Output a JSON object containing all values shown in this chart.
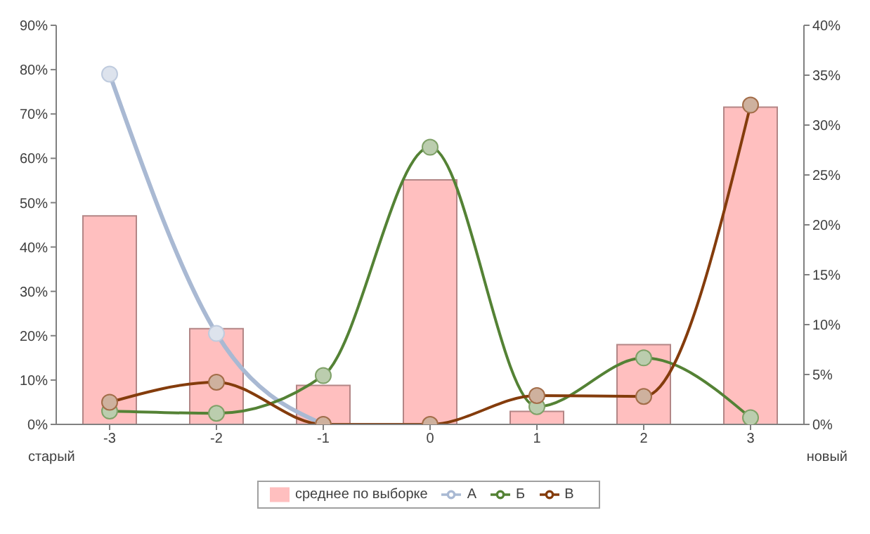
{
  "chart_data": {
    "type": "bar",
    "categories": [
      "-3",
      "-2",
      "-1",
      "0",
      "1",
      "2",
      "3"
    ],
    "series": [
      {
        "name": "среднее по выборке",
        "axis": "y2",
        "color": "#ffbfbf",
        "values": [
          20.9,
          9.6,
          3.9,
          24.5,
          1.3,
          8,
          31.8
        ]
      },
      {
        "name": "А",
        "type": "line",
        "color": "#a9b9d3",
        "values": [
          79,
          20.5,
          0,
          null,
          null,
          null,
          null
        ]
      },
      {
        "name": "Б",
        "type": "line",
        "color": "#548235",
        "values": [
          3,
          2.5,
          11,
          62.5,
          4,
          15,
          1.5
        ]
      },
      {
        "name": "В",
        "type": "line",
        "color": "#843c0c",
        "values": [
          5,
          9.5,
          0,
          0,
          6.5,
          6.3,
          72
        ]
      }
    ],
    "ylim": [
      0,
      90
    ],
    "yticks": [
      {
        "value": 0,
        "label": "0%"
      },
      {
        "value": 10,
        "label": "10%"
      },
      {
        "value": 20,
        "label": "20%"
      },
      {
        "value": 30,
        "label": "30%"
      },
      {
        "value": 40,
        "label": "40%"
      },
      {
        "value": 50,
        "label": "50%"
      },
      {
        "value": 60,
        "label": "60%"
      },
      {
        "value": 70,
        "label": "70%"
      },
      {
        "value": 80,
        "label": "80%"
      },
      {
        "value": 90,
        "label": "90%"
      }
    ],
    "y2lim": [
      0,
      40
    ],
    "y2ticks": [
      {
        "value": 0,
        "label": "0%"
      },
      {
        "value": 5,
        "label": "5%"
      },
      {
        "value": 10,
        "label": "10%"
      },
      {
        "value": 15,
        "label": "15%"
      },
      {
        "value": 20,
        "label": "20%"
      },
      {
        "value": 25,
        "label": "25%"
      },
      {
        "value": 30,
        "label": "30%"
      },
      {
        "value": 35,
        "label": "35%"
      },
      {
        "value": 40,
        "label": "40%"
      }
    ],
    "annotations": [
      "старый",
      "новый"
    ],
    "marker": "circle",
    "legend": "bottom",
    "grid": false
  }
}
